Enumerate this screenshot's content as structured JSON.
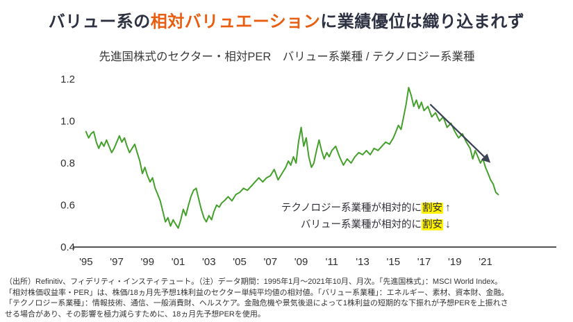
{
  "header": {
    "title_part1": "バリュー系の",
    "title_accent": "相対バリュエーション",
    "title_part2": "に業績優位は織り込まれず"
  },
  "colors": {
    "title_color": "#2d3142",
    "accent_orange": "#e85d10",
    "line_green": "#43a02a",
    "arrow_color": "#3c4356",
    "highlight_yellow": "#fff100"
  },
  "chart_data": {
    "type": "line",
    "title": "先進国株式のセクター・相対PER　バリュー系業種 / テクノロジー系業種",
    "xlabel": "",
    "ylabel": "",
    "ylim": [
      0.4,
      1.2
    ],
    "y_ticks": [
      0.4,
      0.6,
      0.8,
      1.0,
      1.2
    ],
    "x_tick_years": [
      1995,
      1997,
      1999,
      2001,
      2003,
      2005,
      2007,
      2009,
      2011,
      2013,
      2015,
      2017,
      2019,
      2021
    ],
    "x_tick_labels": [
      "'95",
      "'97",
      "'99",
      "'01",
      "'03",
      "'05",
      "'07",
      "'09",
      "'11",
      "'13",
      "'15",
      "'17",
      "'19",
      "'21"
    ],
    "grid": false,
    "legend": "none",
    "series": [
      {
        "name": "バリュー系業種/テクノロジー系業種 相対PER",
        "points": [
          [
            1995.0,
            0.95
          ],
          [
            1995.17,
            0.92
          ],
          [
            1995.33,
            0.94
          ],
          [
            1995.5,
            0.95
          ],
          [
            1995.67,
            0.9
          ],
          [
            1995.83,
            0.87
          ],
          [
            1996.0,
            0.9
          ],
          [
            1996.17,
            0.88
          ],
          [
            1996.33,
            0.91
          ],
          [
            1996.5,
            0.88
          ],
          [
            1996.67,
            0.85
          ],
          [
            1996.83,
            0.87
          ],
          [
            1997.0,
            0.9
          ],
          [
            1997.17,
            0.93
          ],
          [
            1997.33,
            0.9
          ],
          [
            1997.5,
            0.92
          ],
          [
            1997.67,
            0.88
          ],
          [
            1997.83,
            0.85
          ],
          [
            1998.0,
            0.87
          ],
          [
            1998.17,
            0.89
          ],
          [
            1998.33,
            0.85
          ],
          [
            1998.5,
            0.81
          ],
          [
            1998.67,
            0.75
          ],
          [
            1998.83,
            0.78
          ],
          [
            1999.0,
            0.74
          ],
          [
            1999.17,
            0.71
          ],
          [
            1999.33,
            0.73
          ],
          [
            1999.5,
            0.68
          ],
          [
            1999.67,
            0.65
          ],
          [
            1999.83,
            0.62
          ],
          [
            2000.0,
            0.57
          ],
          [
            2000.17,
            0.52
          ],
          [
            2000.33,
            0.54
          ],
          [
            2000.5,
            0.5
          ],
          [
            2000.67,
            0.53
          ],
          [
            2000.83,
            0.51
          ],
          [
            2001.0,
            0.49
          ],
          [
            2001.17,
            0.53
          ],
          [
            2001.33,
            0.58
          ],
          [
            2001.5,
            0.55
          ],
          [
            2001.67,
            0.6
          ],
          [
            2001.83,
            0.64
          ],
          [
            2002.0,
            0.67
          ],
          [
            2002.17,
            0.68
          ],
          [
            2002.33,
            0.63
          ],
          [
            2002.5,
            0.58
          ],
          [
            2002.67,
            0.54
          ],
          [
            2002.83,
            0.52
          ],
          [
            2003.0,
            0.55
          ],
          [
            2003.17,
            0.53
          ],
          [
            2003.33,
            0.57
          ],
          [
            2003.5,
            0.6
          ],
          [
            2003.67,
            0.59
          ],
          [
            2003.83,
            0.61
          ],
          [
            2004.0,
            0.62
          ],
          [
            2004.25,
            0.64
          ],
          [
            2004.5,
            0.62
          ],
          [
            2004.75,
            0.65
          ],
          [
            2005.0,
            0.66
          ],
          [
            2005.25,
            0.68
          ],
          [
            2005.5,
            0.67
          ],
          [
            2005.75,
            0.69
          ],
          [
            2006.0,
            0.71
          ],
          [
            2006.25,
            0.73
          ],
          [
            2006.5,
            0.71
          ],
          [
            2006.75,
            0.73
          ],
          [
            2007.0,
            0.74
          ],
          [
            2007.25,
            0.77
          ],
          [
            2007.5,
            0.72
          ],
          [
            2007.75,
            0.75
          ],
          [
            2008.0,
            0.78
          ],
          [
            2008.17,
            0.81
          ],
          [
            2008.33,
            0.79
          ],
          [
            2008.5,
            0.83
          ],
          [
            2008.67,
            0.8
          ],
          [
            2008.83,
            0.9
          ],
          [
            2009.0,
            0.97
          ],
          [
            2009.17,
            0.88
          ],
          [
            2009.33,
            0.92
          ],
          [
            2009.5,
            0.83
          ],
          [
            2009.67,
            0.78
          ],
          [
            2009.83,
            0.8
          ],
          [
            2010.0,
            0.86
          ],
          [
            2010.17,
            0.91
          ],
          [
            2010.33,
            0.86
          ],
          [
            2010.5,
            0.82
          ],
          [
            2010.67,
            0.85
          ],
          [
            2010.83,
            0.83
          ],
          [
            2011.0,
            0.86
          ],
          [
            2011.25,
            0.88
          ],
          [
            2011.5,
            0.83
          ],
          [
            2011.75,
            0.79
          ],
          [
            2012.0,
            0.82
          ],
          [
            2012.25,
            0.8
          ],
          [
            2012.5,
            0.83
          ],
          [
            2012.75,
            0.85
          ],
          [
            2013.0,
            0.84
          ],
          [
            2013.25,
            0.86
          ],
          [
            2013.5,
            0.84
          ],
          [
            2013.75,
            0.87
          ],
          [
            2014.0,
            0.86
          ],
          [
            2014.25,
            0.88
          ],
          [
            2014.5,
            0.9
          ],
          [
            2014.75,
            0.89
          ],
          [
            2015.0,
            0.92
          ],
          [
            2015.17,
            0.95
          ],
          [
            2015.33,
            0.98
          ],
          [
            2015.5,
            0.96
          ],
          [
            2015.67,
            1.02
          ],
          [
            2015.83,
            1.08
          ],
          [
            2016.0,
            1.16
          ],
          [
            2016.17,
            1.12
          ],
          [
            2016.33,
            1.07
          ],
          [
            2016.5,
            1.1
          ],
          [
            2016.67,
            1.06
          ],
          [
            2016.83,
            1.09
          ],
          [
            2017.0,
            1.05
          ],
          [
            2017.25,
            1.07
          ],
          [
            2017.5,
            1.02
          ],
          [
            2017.75,
            1.04
          ],
          [
            2018.0,
            1.0
          ],
          [
            2018.25,
            1.02
          ],
          [
            2018.5,
            0.97
          ],
          [
            2018.75,
            0.99
          ],
          [
            2019.0,
            0.95
          ],
          [
            2019.25,
            0.92
          ],
          [
            2019.5,
            0.94
          ],
          [
            2019.75,
            0.9
          ],
          [
            2020.0,
            0.87
          ],
          [
            2020.17,
            0.82
          ],
          [
            2020.33,
            0.86
          ],
          [
            2020.5,
            0.83
          ],
          [
            2020.67,
            0.8
          ],
          [
            2020.83,
            0.82
          ],
          [
            2021.0,
            0.78
          ],
          [
            2021.17,
            0.75
          ],
          [
            2021.33,
            0.72
          ],
          [
            2021.5,
            0.7
          ],
          [
            2021.67,
            0.66
          ],
          [
            2021.83,
            0.65
          ]
        ]
      }
    ],
    "trend_arrow": {
      "from": [
        2017.4,
        1.08
      ],
      "to": [
        2021.2,
        0.81
      ]
    },
    "annotations": [
      {
        "text": "テクノロジー系業種が相対的に",
        "highlight": "割安",
        "arrow": "↑"
      },
      {
        "text": "バリュー系業種が相対的に",
        "highlight": "割安",
        "arrow": "↓"
      }
    ]
  },
  "footer": {
    "lines": [
      "（出所）Refinitiv、フィデリティ・インスティテュート。（注）データ期間：1995年1月〜2021年10月、月次。「先進国株式」：MSCI World Index。",
      "「相対株価収益率・PER」は、株価/18ヵ月先予想1株利益のセクター単純平均値の相対値。「バリュー系業種」：エネルギー、素材、資本財、金融。",
      "「テクノロジー系業種」：情報技術、通信、一般消費財、ヘルスケア。金融危機や景気後退によって1株利益の短期的な下振れが予想PERを上振れさ",
      "せる場合があり、その影響を極力減らすために、18ヵ月先予想PERを使用。"
    ]
  }
}
